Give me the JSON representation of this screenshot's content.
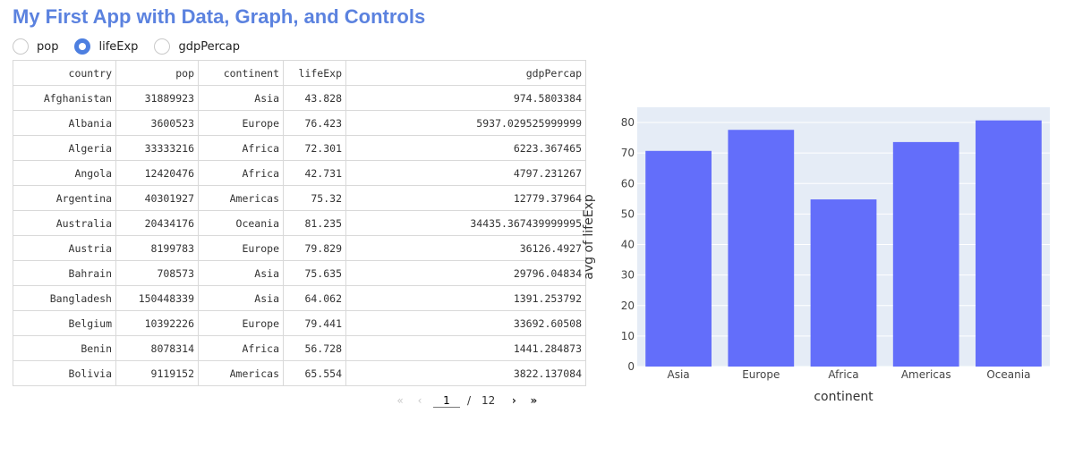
{
  "app": {
    "title": "My First App with Data, Graph, and Controls"
  },
  "radio": {
    "options": [
      "pop",
      "lifeExp",
      "gdpPercap"
    ],
    "selected": "lifeExp"
  },
  "table": {
    "columns": [
      "country",
      "pop",
      "continent",
      "lifeExp",
      "gdpPercap"
    ],
    "rows": [
      [
        "Afghanistan",
        "31889923",
        "Asia",
        "43.828",
        "974.5803384"
      ],
      [
        "Albania",
        "3600523",
        "Europe",
        "76.423",
        "5937.029525999999"
      ],
      [
        "Algeria",
        "33333216",
        "Africa",
        "72.301",
        "6223.367465"
      ],
      [
        "Angola",
        "12420476",
        "Africa",
        "42.731",
        "4797.231267"
      ],
      [
        "Argentina",
        "40301927",
        "Americas",
        "75.32",
        "12779.37964"
      ],
      [
        "Australia",
        "20434176",
        "Oceania",
        "81.235",
        "34435.367439999995"
      ],
      [
        "Austria",
        "8199783",
        "Europe",
        "79.829",
        "36126.4927"
      ],
      [
        "Bahrain",
        "708573",
        "Asia",
        "75.635",
        "29796.04834"
      ],
      [
        "Bangladesh",
        "150448339",
        "Asia",
        "64.062",
        "1391.253792"
      ],
      [
        "Belgium",
        "10392226",
        "Europe",
        "79.441",
        "33692.60508"
      ],
      [
        "Benin",
        "8078314",
        "Africa",
        "56.728",
        "1441.284873"
      ],
      [
        "Bolivia",
        "9119152",
        "Americas",
        "65.554",
        "3822.137084"
      ]
    ]
  },
  "pagination": {
    "first": "«",
    "prev": "‹",
    "current": "1",
    "separator": "/",
    "total": "12",
    "next": "›",
    "last": "»"
  },
  "chart_data": {
    "type": "bar",
    "categories": [
      "Asia",
      "Europe",
      "Africa",
      "Americas",
      "Oceania"
    ],
    "values": [
      70.7,
      77.6,
      54.8,
      73.6,
      80.7
    ],
    "title": "",
    "xlabel": "continent",
    "ylabel": "avg of lifeExp",
    "ylim": [
      0,
      85
    ],
    "yticks": [
      0,
      10,
      20,
      30,
      40,
      50,
      60,
      70,
      80
    ],
    "grid": true,
    "bar_color": "#636efa",
    "plot_bg": "#e5ecf6"
  }
}
